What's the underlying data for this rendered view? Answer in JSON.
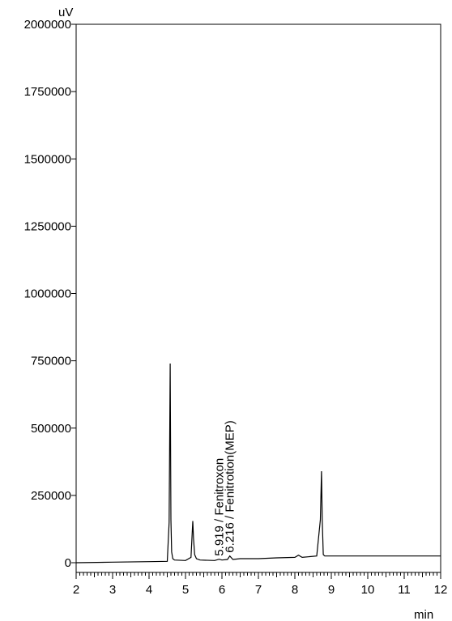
{
  "chart_data": {
    "type": "line",
    "title": "",
    "xlabel": "",
    "ylabel": "",
    "x_unit": "min",
    "y_unit": "uV",
    "xlim": [
      2,
      12
    ],
    "ylim": [
      -50000,
      2000000
    ],
    "x_ticks": [
      2,
      3,
      4,
      5,
      6,
      7,
      8,
      9,
      10,
      11,
      12
    ],
    "x_tick_labels": [
      "2",
      "3",
      "4",
      "5",
      "6",
      "7",
      "8",
      "9",
      "10",
      "11",
      "12"
    ],
    "y_ticks": [
      0,
      250000,
      500000,
      750000,
      1000000,
      1250000,
      1500000,
      1750000,
      2000000
    ],
    "y_tick_labels": [
      "0",
      "250000",
      "500000",
      "750000",
      "1000000",
      "1250000",
      "1500000",
      "1750000",
      "2000000"
    ],
    "grid": false,
    "legend": "none",
    "line_color": "#000000",
    "series": [
      {
        "x": [
          2.0,
          3.0,
          4.0,
          4.5,
          4.55,
          4.58,
          4.6,
          4.62,
          4.65,
          4.7,
          5.0,
          5.15,
          5.2,
          5.22,
          5.25,
          5.3,
          5.4,
          5.8,
          5.919,
          6.0,
          6.15,
          6.216,
          6.3,
          6.5,
          7.0,
          7.5,
          8.0,
          8.1,
          8.2,
          8.6,
          8.7,
          8.73,
          8.75,
          8.78,
          8.82,
          9.0,
          10.0,
          11.0,
          12.0
        ],
        "y": [
          0,
          2000,
          4000,
          5000,
          150000,
          740000,
          160000,
          40000,
          15000,
          10000,
          8000,
          20000,
          155000,
          90000,
          30000,
          15000,
          10000,
          8000,
          13000,
          10000,
          12000,
          25000,
          12000,
          15000,
          15000,
          18000,
          20000,
          28000,
          20000,
          25000,
          160000,
          340000,
          160000,
          30000,
          25000,
          25000,
          25000,
          25000,
          25000
        ]
      }
    ],
    "annotations": [
      {
        "text": "5.919 / Fenitroxon",
        "x": 5.919,
        "y": 13000
      },
      {
        "text": "6.216 / Fenitrotion(MEP)",
        "x": 6.216,
        "y": 25000
      }
    ]
  }
}
